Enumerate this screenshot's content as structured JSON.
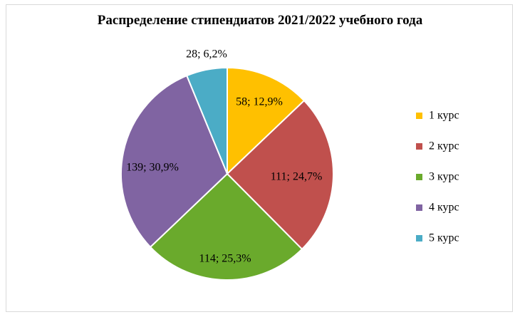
{
  "chart_data": {
    "type": "pie",
    "title": "Распределение стипендиатов  2021/2022 учебного года",
    "categories": [
      "1 курс",
      "2 курс",
      "3 курс",
      "4 курс",
      "5 курс"
    ],
    "values": [
      58,
      111,
      114,
      139,
      28
    ],
    "percent_labels": [
      "12,9%",
      "24,7%",
      "25,3%",
      "30,9%",
      "6,2%"
    ],
    "data_labels": [
      "58;  12,9%",
      "111;  24,7%",
      "114;  25,3%",
      "139;  30,9%",
      "28;  6,2%"
    ],
    "colors": [
      "#ffc000",
      "#c0504d",
      "#6aaa2c",
      "#8064a2",
      "#4bacc6"
    ],
    "legend": "right",
    "start_angle": "12 o'clock, clockwise"
  }
}
